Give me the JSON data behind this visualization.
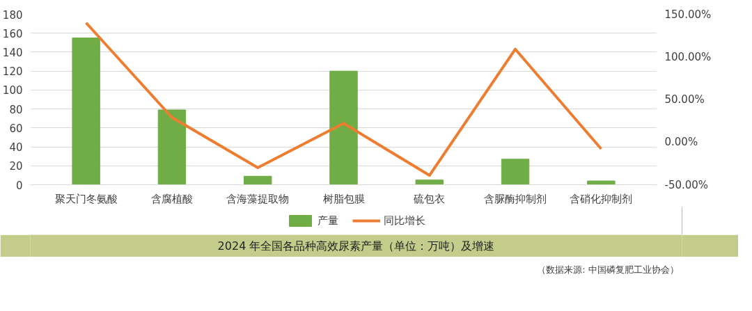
{
  "chart_data": {
    "type": "bar",
    "title": "2024 年全国各品种高效尿素产量（单位：万吨）及增速",
    "categories": [
      "聚天门冬氨酸",
      "含腐植酸",
      "含海藻提取物",
      "树脂包膜",
      "硫包衣",
      "含脲酶抑制剂",
      "含硝化抑制剂"
    ],
    "series": [
      {
        "name": "产量",
        "color": "#70ad47",
        "values": [
          155,
          79,
          9,
          120,
          5,
          27,
          4
        ]
      },
      {
        "name": "同比增长",
        "type": "line",
        "axis": "y2",
        "color": "#ed7d31",
        "values": [
          140,
          29,
          -30,
          22,
          -39,
          109,
          -8
        ]
      }
    ],
    "ylim": [
      0,
      180
    ],
    "yticks": [
      0,
      20,
      40,
      60,
      80,
      100,
      120,
      140,
      160,
      180
    ],
    "y2lim": [
      -50,
      150
    ],
    "y2ticks": [
      {
        "value": -50,
        "label": "-50.00%"
      },
      {
        "value": 0,
        "label": "0.00%"
      },
      {
        "value": 50,
        "label": "50.00%"
      },
      {
        "value": 100,
        "label": "100.00%"
      },
      {
        "value": 150,
        "label": "150.00%"
      }
    ],
    "grid": "y",
    "legend": "bottom",
    "annotations": [
      "（数据来源: 中国磷复肥工业协会）"
    ]
  }
}
